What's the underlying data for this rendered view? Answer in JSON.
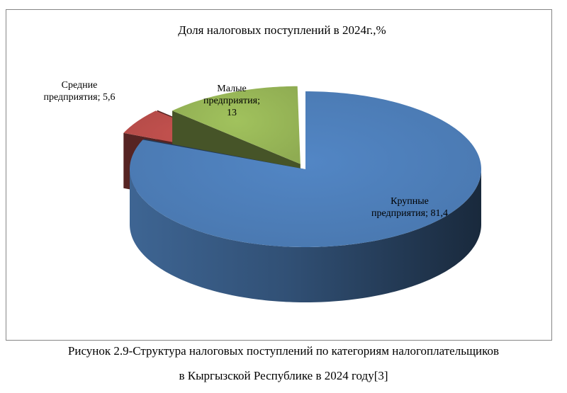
{
  "chart_data": {
    "type": "pie",
    "title": "Доля налоговых поступлений в 2024г.,%",
    "style": "3d-exploded",
    "unit": "%",
    "slices": [
      {
        "name": "Крупные предприятия",
        "value": 81.4,
        "label_lines": [
          "Крупные",
          "предприятия; 81,4"
        ],
        "color": "#4F81BD"
      },
      {
        "name": "Средние предприятия",
        "value": 5.6,
        "label_lines": [
          "Средние",
          "предприятия; 5,6"
        ],
        "color": "#C0504D"
      },
      {
        "name": "Малые предприятия",
        "value": 13,
        "label_lines": [
          "Малые",
          "предприятия;",
          "13"
        ],
        "color": "#9BBB59"
      }
    ]
  },
  "caption": {
    "line1": "Рисунок 2.9-Структура налоговых поступлений по категориям налогоплательщиков",
    "line2": "в Кыргызской Республике в 2024 году[3]"
  }
}
